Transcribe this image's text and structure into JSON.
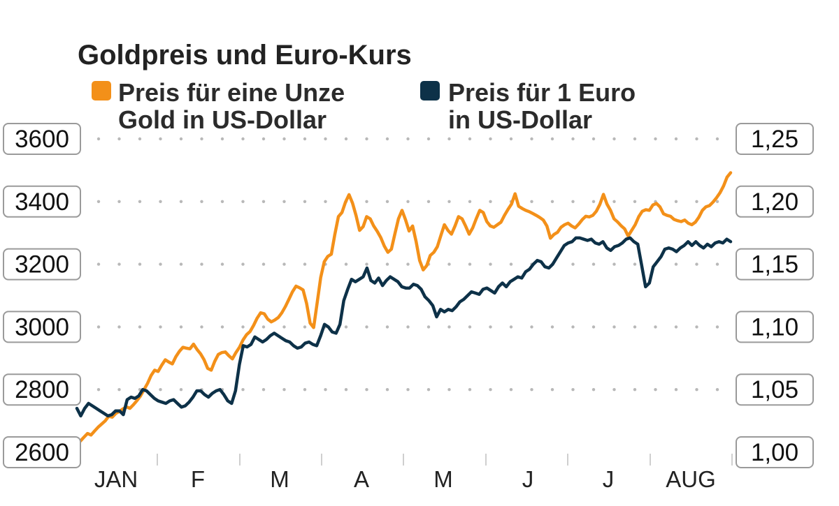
{
  "chart_data": {
    "type": "line",
    "title": "Goldpreis und Euro-Kurs",
    "series": [
      {
        "name": "gold",
        "legend": [
          "Preis für eine Unze",
          "Gold in US-Dollar"
        ],
        "color": "#F39019",
        "axis": "left",
        "values": [
          2625,
          2636,
          2648,
          2660,
          2655,
          2668,
          2680,
          2690,
          2700,
          2715,
          2712,
          2724,
          2730,
          2738,
          2745,
          2740,
          2752,
          2765,
          2780,
          2800,
          2820,
          2845,
          2862,
          2858,
          2878,
          2895,
          2888,
          2882,
          2905,
          2922,
          2935,
          2932,
          2930,
          2945,
          2928,
          2914,
          2895,
          2868,
          2862,
          2890,
          2912,
          2918,
          2920,
          2908,
          2898,
          2918,
          2935,
          2958,
          2975,
          2985,
          3005,
          3028,
          3045,
          3042,
          3025,
          3016,
          3022,
          3030,
          3045,
          3065,
          3088,
          3112,
          3130,
          3125,
          3118,
          3075,
          3012,
          2998,
          3078,
          3158,
          3208,
          3225,
          3232,
          3295,
          3352,
          3365,
          3398,
          3422,
          3395,
          3355,
          3308,
          3320,
          3352,
          3345,
          3322,
          3305,
          3285,
          3258,
          3238,
          3248,
          3298,
          3345,
          3372,
          3342,
          3306,
          3322,
          3272,
          3212,
          3182,
          3196,
          3228,
          3238,
          3256,
          3292,
          3326,
          3308,
          3296,
          3322,
          3352,
          3345,
          3322,
          3296,
          3316,
          3345,
          3372,
          3365,
          3336,
          3322,
          3318,
          3326,
          3334,
          3356,
          3375,
          3392,
          3425,
          3385,
          3378,
          3372,
          3368,
          3362,
          3356,
          3349,
          3341,
          3322,
          3283,
          3295,
          3302,
          3318,
          3326,
          3331,
          3322,
          3316,
          3328,
          3342,
          3353,
          3351,
          3356,
          3369,
          3391,
          3423,
          3392,
          3372,
          3345,
          3335,
          3323,
          3313,
          3290,
          3308,
          3326,
          3352,
          3369,
          3374,
          3372,
          3389,
          3394,
          3383,
          3361,
          3356,
          3353,
          3343,
          3339,
          3336,
          3341,
          3331,
          3326,
          3334,
          3350,
          3372,
          3383,
          3387,
          3398,
          3412,
          3428,
          3450,
          3478,
          3492
        ]
      },
      {
        "name": "euro",
        "legend": [
          "Preis für 1 Euro",
          "in US-Dollar"
        ],
        "color": "#0D3148",
        "axis": "right",
        "values": [
          1.035,
          1.029,
          1.035,
          1.039,
          1.037,
          1.035,
          1.033,
          1.031,
          1.029,
          1.03,
          1.033,
          1.033,
          1.03,
          1.042,
          1.044,
          1.043,
          1.045,
          1.05,
          1.049,
          1.046,
          1.043,
          1.041,
          1.04,
          1.039,
          1.041,
          1.042,
          1.039,
          1.036,
          1.037,
          1.04,
          1.044,
          1.049,
          1.049,
          1.046,
          1.044,
          1.047,
          1.049,
          1.05,
          1.046,
          1.041,
          1.039,
          1.049,
          1.07,
          1.085,
          1.084,
          1.086,
          1.092,
          1.09,
          1.088,
          1.09,
          1.093,
          1.095,
          1.093,
          1.091,
          1.089,
          1.088,
          1.085,
          1.083,
          1.084,
          1.087,
          1.088,
          1.086,
          1.085,
          1.093,
          1.102,
          1.1,
          1.096,
          1.095,
          1.102,
          1.121,
          1.13,
          1.138,
          1.136,
          1.138,
          1.14,
          1.147,
          1.137,
          1.135,
          1.139,
          1.133,
          1.137,
          1.14,
          1.138,
          1.136,
          1.132,
          1.131,
          1.131,
          1.134,
          1.133,
          1.13,
          1.124,
          1.121,
          1.117,
          1.108,
          1.114,
          1.112,
          1.114,
          1.113,
          1.116,
          1.12,
          1.122,
          1.125,
          1.128,
          1.127,
          1.126,
          1.13,
          1.131,
          1.129,
          1.127,
          1.132,
          1.135,
          1.132,
          1.136,
          1.138,
          1.14,
          1.139,
          1.144,
          1.146,
          1.15,
          1.153,
          1.152,
          1.148,
          1.147,
          1.15,
          1.155,
          1.16,
          1.165,
          1.167,
          1.168,
          1.171,
          1.171,
          1.17,
          1.169,
          1.17,
          1.167,
          1.166,
          1.168,
          1.163,
          1.161,
          1.164,
          1.165,
          1.167,
          1.17,
          1.171,
          1.168,
          1.166,
          1.149,
          1.132,
          1.135,
          1.148,
          1.152,
          1.156,
          1.162,
          1.163,
          1.162,
          1.16,
          1.163,
          1.165,
          1.168,
          1.165,
          1.168,
          1.165,
          1.163,
          1.166,
          1.164,
          1.167,
          1.168,
          1.167,
          1.17,
          1.168
        ]
      }
    ],
    "left_axis": {
      "ticks": [
        3600,
        3400,
        3200,
        3000,
        2800,
        2600
      ],
      "ylim": [
        2600,
        3600
      ]
    },
    "right_axis": {
      "ticks": [
        1.25,
        1.2,
        1.15,
        1.1,
        1.05,
        1.0
      ],
      "tick_labels": [
        "1,25",
        "1,20",
        "1,15",
        "1,10",
        "1,05",
        "1,00"
      ],
      "ylim": [
        1.0,
        1.25
      ]
    },
    "months": [
      "JAN",
      "F",
      "M",
      "A",
      "M",
      "J",
      "J",
      "AUG"
    ],
    "grid": "dotted-horizontal",
    "legend_position": "top"
  }
}
